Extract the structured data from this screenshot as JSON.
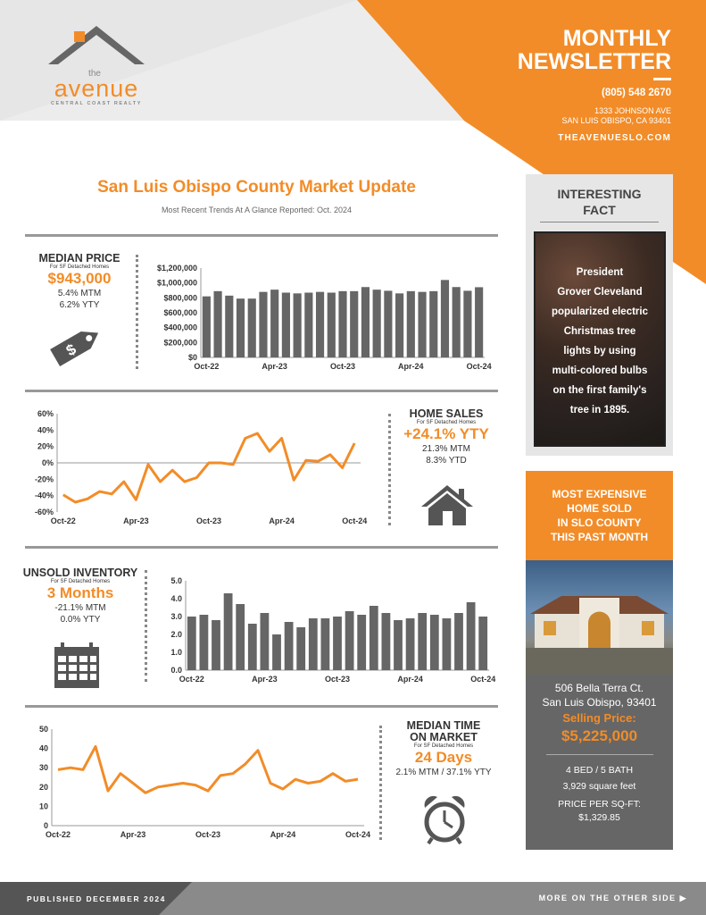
{
  "header": {
    "title_line1": "MONTHLY",
    "title_line2": "NEWSLETTER",
    "phone": "(805) 548 2670",
    "address_line1": "1333 JOHNSON AVE",
    "address_line2": "SAN LUIS OBISPO, CA 93401",
    "website": "THEAVENUESLO.COM"
  },
  "logo": {
    "the": "the",
    "name": "avenue",
    "tagline": "CENTRAL COAST REALTY"
  },
  "main": {
    "title": "San Luis Obispo County Market Update",
    "subtitle": "Most Recent Trends At A Glance Reported: Oct. 2024"
  },
  "median_price": {
    "heading": "MEDIAN PRICE",
    "sub": "For SF Detached Homes",
    "value": "$943,000",
    "mtm": "5.4% MTM",
    "yty": "6.2% YTY",
    "icon": "price-tag-icon"
  },
  "home_sales": {
    "heading": "HOME SALES",
    "sub": "For SF Detached Homes",
    "value": "+24.1% YTY",
    "mtm": "21.3% MTM",
    "ytd": "8.3% YTD",
    "icon": "house-icon"
  },
  "inventory": {
    "heading": "UNSOLD INVENTORY",
    "sub": "For SF Detached Homes",
    "value": "3 Months",
    "mtm": "-21.1% MTM",
    "yty": "0.0% YTY",
    "icon": "calendar-icon"
  },
  "time_on_market": {
    "heading_line1": "MEDIAN TIME",
    "heading_line2": "ON MARKET",
    "sub": "For SF Detached Homes",
    "value": "24 Days",
    "change": "2.1% MTM / 37.1% YTY",
    "icon": "alarm-clock-icon"
  },
  "fact": {
    "title_line1": "INTERESTING",
    "title_line2": "FACT",
    "lines": [
      "President",
      "Grover Cleveland",
      "popularized electric",
      "Christmas tree",
      "lights by using",
      "multi-colored bulbs",
      "on the first family's",
      "tree in 1895."
    ]
  },
  "expensive": {
    "title_lines": [
      "MOST EXPENSIVE",
      "HOME SOLD",
      "IN SLO COUNTY",
      "THIS PAST MONTH"
    ],
    "address_line1": "506 Bella Terra Ct.",
    "address_line2": "San Luis Obispo, 93401",
    "price_label": "Selling Price:",
    "price": "$5,225,000",
    "beds_baths": "4 BED / 5 BATH",
    "sqft": "3,929 square feet",
    "pps_label": "PRICE PER SQ-FT:",
    "pps": "$1,329.85"
  },
  "footer": {
    "published": "PUBLISHED DECEMBER 2024",
    "more": "MORE ON THE OTHER SIDE ▶"
  },
  "colors": {
    "orange": "#f28c28",
    "gray_dark": "#666666",
    "gray_bar": "#666666",
    "gray_light": "#e6e6e6"
  },
  "chart_data": [
    {
      "type": "bar",
      "ylim": [
        0,
        1200000
      ],
      "yticks": [
        "$0",
        "$200,000",
        "$400,000",
        "$600,000",
        "$800,000",
        "$1,000,000",
        "$1,200,000"
      ],
      "xticks": [
        "Oct-22",
        "Apr-23",
        "Oct-23",
        "Apr-24",
        "Oct-24"
      ],
      "values": [
        820000,
        890000,
        830000,
        790000,
        790000,
        880000,
        910000,
        870000,
        860000,
        870000,
        880000,
        870000,
        890000,
        890000,
        945000,
        910000,
        895000,
        860000,
        890000,
        880000,
        890000,
        1040000,
        945000,
        895000,
        943000
      ]
    },
    {
      "type": "line",
      "ylim": [
        -60,
        60
      ],
      "yticks": [
        "60%",
        "40%",
        "20%",
        "0%",
        "-20%",
        "-40%",
        "-60%"
      ],
      "xticks": [
        "Oct-22",
        "Apr-23",
        "Oct-23",
        "Apr-24",
        "Oct-24"
      ],
      "values": [
        -39,
        -48,
        -44,
        -35,
        -38,
        -23,
        -45,
        -2,
        -23,
        -9,
        -23,
        -18,
        0,
        0,
        -2,
        30,
        36,
        14,
        30,
        -21,
        3,
        2,
        10,
        -6,
        24
      ]
    },
    {
      "type": "bar",
      "ylim": [
        0,
        5
      ],
      "yticks": [
        "0.0",
        "1.0",
        "2.0",
        "3.0",
        "4.0",
        "5.0"
      ],
      "xticks": [
        "Oct-22",
        "Apr-23",
        "Oct-23",
        "Apr-24",
        "Oct-24"
      ],
      "values": [
        3.0,
        3.1,
        2.8,
        4.3,
        3.7,
        2.6,
        3.2,
        2.0,
        2.7,
        2.4,
        2.9,
        2.9,
        3.0,
        3.3,
        3.1,
        3.6,
        3.2,
        2.8,
        2.9,
        3.2,
        3.1,
        2.9,
        3.2,
        3.8,
        3.0
      ]
    },
    {
      "type": "line",
      "ylim": [
        0,
        50
      ],
      "yticks": [
        "0",
        "10",
        "20",
        "30",
        "40",
        "50"
      ],
      "xticks": [
        "Oct-22",
        "Apr-23",
        "Oct-23",
        "Apr-24",
        "Oct-24"
      ],
      "values": [
        29,
        30,
        29,
        41,
        18,
        27,
        22,
        17,
        20,
        21,
        22,
        21,
        18,
        26,
        27,
        32,
        39,
        22,
        19,
        24,
        22,
        23,
        27,
        23,
        24
      ]
    }
  ]
}
